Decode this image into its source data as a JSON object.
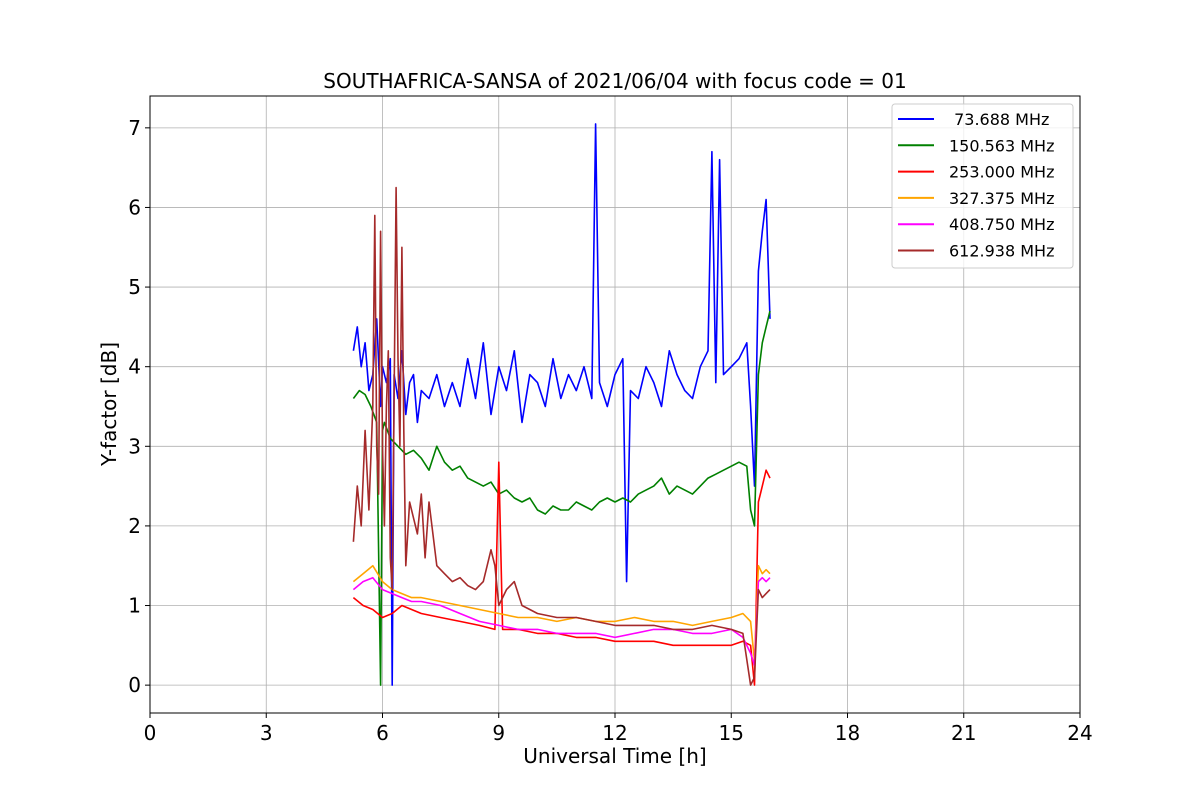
{
  "chart_data": {
    "type": "line",
    "title": "SOUTHAFRICA-SANSA of 2021/06/04 with focus code = 01",
    "xlabel": "Universal Time [h]",
    "ylabel": "Y-factor [dB]",
    "xlim": [
      0,
      24
    ],
    "ylim": [
      -0.35,
      7.4
    ],
    "xticks": [
      0,
      3,
      6,
      9,
      12,
      15,
      18,
      21,
      24
    ],
    "yticks": [
      0,
      1,
      2,
      3,
      4,
      5,
      6,
      7
    ],
    "grid": true,
    "legend_position": "top-right",
    "series": [
      {
        "name": " 73.688 MHz",
        "color": "#0000ff",
        "x": [
          5.25,
          5.35,
          5.45,
          5.55,
          5.65,
          5.75,
          5.85,
          5.95,
          6.0,
          6.1,
          6.2,
          6.25,
          6.3,
          6.4,
          6.5,
          6.6,
          6.7,
          6.8,
          6.9,
          7.0,
          7.2,
          7.4,
          7.6,
          7.8,
          8.0,
          8.2,
          8.4,
          8.6,
          8.8,
          9.0,
          9.2,
          9.4,
          9.6,
          9.8,
          10.0,
          10.2,
          10.4,
          10.6,
          10.8,
          11.0,
          11.2,
          11.4,
          11.5,
          11.6,
          11.8,
          12.0,
          12.2,
          12.3,
          12.4,
          12.6,
          12.8,
          13.0,
          13.2,
          13.4,
          13.6,
          13.8,
          14.0,
          14.2,
          14.4,
          14.5,
          14.6,
          14.7,
          14.8,
          15.0,
          15.2,
          15.4,
          15.5,
          15.6,
          15.7,
          15.8,
          15.9,
          16.0
        ],
        "y": [
          4.2,
          4.5,
          4.0,
          4.3,
          3.7,
          3.9,
          4.6,
          3.5,
          4.0,
          3.8,
          4.1,
          0.0,
          3.9,
          3.6,
          4.2,
          3.4,
          3.8,
          3.9,
          3.3,
          3.7,
          3.6,
          3.9,
          3.5,
          3.8,
          3.5,
          4.1,
          3.6,
          4.3,
          3.4,
          4.0,
          3.7,
          4.2,
          3.3,
          3.9,
          3.8,
          3.5,
          4.1,
          3.6,
          3.9,
          3.7,
          4.0,
          3.6,
          7.05,
          3.8,
          3.5,
          3.9,
          4.1,
          1.3,
          3.7,
          3.6,
          4.0,
          3.8,
          3.5,
          4.2,
          3.9,
          3.7,
          3.6,
          4.0,
          4.2,
          6.7,
          3.8,
          6.6,
          3.9,
          4.0,
          4.1,
          4.3,
          3.5,
          2.5,
          5.2,
          5.7,
          6.1,
          4.6
        ]
      },
      {
        "name": "150.563 MHz",
        "color": "#008000",
        "x": [
          5.25,
          5.4,
          5.55,
          5.7,
          5.85,
          5.95,
          6.0,
          6.05,
          6.2,
          6.4,
          6.6,
          6.8,
          7.0,
          7.2,
          7.4,
          7.6,
          7.8,
          8.0,
          8.2,
          8.4,
          8.6,
          8.8,
          9.0,
          9.2,
          9.4,
          9.6,
          9.8,
          10.0,
          10.2,
          10.4,
          10.6,
          10.8,
          11.0,
          11.2,
          11.4,
          11.6,
          11.8,
          12.0,
          12.2,
          12.4,
          12.6,
          12.8,
          13.0,
          13.2,
          13.4,
          13.6,
          13.8,
          14.0,
          14.2,
          14.4,
          14.6,
          14.8,
          15.0,
          15.2,
          15.4,
          15.5,
          15.6,
          15.7,
          15.8,
          15.9,
          16.0
        ],
        "y": [
          3.6,
          3.7,
          3.65,
          3.5,
          3.3,
          0.0,
          3.2,
          3.3,
          3.1,
          3.0,
          2.9,
          2.95,
          2.85,
          2.7,
          3.0,
          2.8,
          2.7,
          2.75,
          2.6,
          2.55,
          2.5,
          2.55,
          2.4,
          2.45,
          2.35,
          2.3,
          2.35,
          2.2,
          2.15,
          2.25,
          2.2,
          2.2,
          2.3,
          2.25,
          2.2,
          2.3,
          2.35,
          2.3,
          2.35,
          2.3,
          2.4,
          2.45,
          2.5,
          2.6,
          2.4,
          2.5,
          2.45,
          2.4,
          2.5,
          2.6,
          2.65,
          2.7,
          2.75,
          2.8,
          2.75,
          2.2,
          2.0,
          3.9,
          4.3,
          4.5,
          4.7
        ]
      },
      {
        "name": "253.000 MHz",
        "color": "#ff0000",
        "x": [
          5.25,
          5.5,
          5.75,
          6.0,
          6.25,
          6.5,
          6.75,
          7.0,
          7.5,
          8.0,
          8.5,
          8.9,
          9.0,
          9.1,
          9.5,
          10.0,
          10.5,
          11.0,
          11.5,
          12.0,
          12.5,
          13.0,
          13.5,
          14.0,
          14.5,
          15.0,
          15.3,
          15.5,
          15.6,
          15.7,
          15.8,
          15.9,
          16.0
        ],
        "y": [
          1.1,
          1.0,
          0.95,
          0.85,
          0.9,
          1.0,
          0.95,
          0.9,
          0.85,
          0.8,
          0.75,
          0.7,
          2.8,
          0.7,
          0.7,
          0.65,
          0.65,
          0.6,
          0.6,
          0.55,
          0.55,
          0.55,
          0.5,
          0.5,
          0.5,
          0.5,
          0.55,
          0.5,
          0.0,
          2.3,
          2.5,
          2.7,
          2.6
        ]
      },
      {
        "name": "327.375 MHz",
        "color": "#ffa500",
        "x": [
          5.25,
          5.5,
          5.75,
          6.0,
          6.25,
          6.5,
          6.75,
          7.0,
          7.5,
          8.0,
          8.5,
          9.0,
          9.5,
          10.0,
          10.5,
          11.0,
          11.5,
          12.0,
          12.5,
          13.0,
          13.5,
          14.0,
          14.5,
          15.0,
          15.3,
          15.5,
          15.6,
          15.7,
          15.8,
          15.9,
          16.0
        ],
        "y": [
          1.3,
          1.4,
          1.5,
          1.3,
          1.2,
          1.15,
          1.1,
          1.1,
          1.05,
          1.0,
          0.95,
          0.9,
          0.85,
          0.85,
          0.8,
          0.85,
          0.8,
          0.8,
          0.85,
          0.8,
          0.8,
          0.75,
          0.8,
          0.85,
          0.9,
          0.8,
          0.3,
          1.5,
          1.4,
          1.45,
          1.4
        ]
      },
      {
        "name": "408.750 MHz",
        "color": "#ff00ff",
        "x": [
          5.25,
          5.5,
          5.75,
          6.0,
          6.25,
          6.5,
          6.75,
          7.0,
          7.5,
          8.0,
          8.5,
          9.0,
          9.5,
          10.0,
          10.5,
          11.0,
          11.5,
          12.0,
          12.5,
          13.0,
          13.5,
          14.0,
          14.5,
          15.0,
          15.3,
          15.5,
          15.6,
          15.7,
          15.8,
          15.9,
          16.0
        ],
        "y": [
          1.2,
          1.3,
          1.35,
          1.2,
          1.15,
          1.1,
          1.05,
          1.05,
          1.0,
          0.9,
          0.8,
          0.75,
          0.7,
          0.7,
          0.65,
          0.65,
          0.65,
          0.6,
          0.65,
          0.7,
          0.7,
          0.65,
          0.65,
          0.7,
          0.6,
          0.4,
          0.25,
          1.3,
          1.35,
          1.3,
          1.35
        ]
      },
      {
        "name": "612.938 MHz",
        "color": "#a52a2a",
        "x": [
          5.25,
          5.35,
          5.45,
          5.55,
          5.65,
          5.75,
          5.8,
          5.85,
          5.9,
          5.95,
          6.0,
          6.05,
          6.1,
          6.15,
          6.2,
          6.25,
          6.3,
          6.35,
          6.4,
          6.45,
          6.5,
          6.55,
          6.6,
          6.7,
          6.8,
          6.9,
          7.0,
          7.1,
          7.2,
          7.4,
          7.6,
          7.8,
          8.0,
          8.2,
          8.4,
          8.6,
          8.8,
          8.9,
          9.0,
          9.2,
          9.4,
          9.6,
          9.8,
          10.0,
          10.5,
          11.0,
          11.5,
          12.0,
          12.5,
          13.0,
          13.5,
          14.0,
          14.5,
          15.0,
          15.3,
          15.5,
          15.6,
          15.7,
          15.8,
          15.9,
          16.0
        ],
        "y": [
          1.8,
          2.5,
          2.0,
          3.2,
          2.2,
          3.5,
          5.9,
          3.0,
          2.4,
          5.7,
          3.0,
          2.0,
          3.5,
          4.2,
          1.6,
          1.2,
          3.6,
          6.25,
          4.1,
          3.0,
          5.5,
          3.2,
          1.5,
          2.3,
          2.1,
          1.9,
          2.4,
          1.6,
          2.3,
          1.5,
          1.4,
          1.3,
          1.35,
          1.25,
          1.2,
          1.3,
          1.7,
          1.5,
          1.0,
          1.2,
          1.3,
          1.0,
          0.95,
          0.9,
          0.85,
          0.85,
          0.8,
          0.75,
          0.75,
          0.75,
          0.7,
          0.7,
          0.75,
          0.7,
          0.65,
          0.0,
          0.1,
          1.2,
          1.1,
          1.15,
          1.2
        ]
      }
    ]
  }
}
